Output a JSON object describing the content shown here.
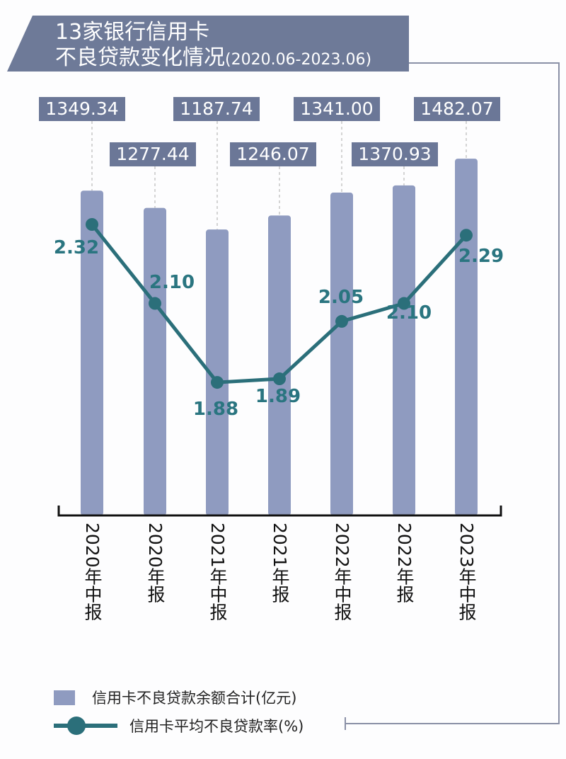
{
  "chart_data": {
    "type": "bar+line",
    "title": "13家银行信用卡",
    "subtitle": "不良贷款变化情况",
    "period": "(2020.06-2023.06)",
    "categories": [
      "2020年中报",
      "2020年报",
      "2021年中报",
      "2021年报",
      "2022年中报",
      "2022年报",
      "2023年中报"
    ],
    "series": [
      {
        "name": "信用卡不良贷款余额合计(亿元)",
        "type": "bar",
        "color": "#8f9bc0",
        "values": [
          1349.34,
          1277.44,
          1187.74,
          1246.07,
          1341.0,
          1370.93,
          1482.07
        ],
        "labels": [
          "1349.34",
          "1277.44",
          "1187.74",
          "1246.07",
          "1341.00",
          "1370.93",
          "1482.07"
        ]
      },
      {
        "name": "信用卡平均不良贷款率(%)",
        "type": "line",
        "color": "#2b6f7a",
        "values": [
          2.32,
          2.1,
          1.88,
          1.89,
          2.05,
          2.1,
          2.29
        ],
        "labels": [
          "2.32",
          "2.10",
          "1.88",
          "1.89",
          "2.05",
          "2.10",
          "2.29"
        ]
      }
    ]
  }
}
